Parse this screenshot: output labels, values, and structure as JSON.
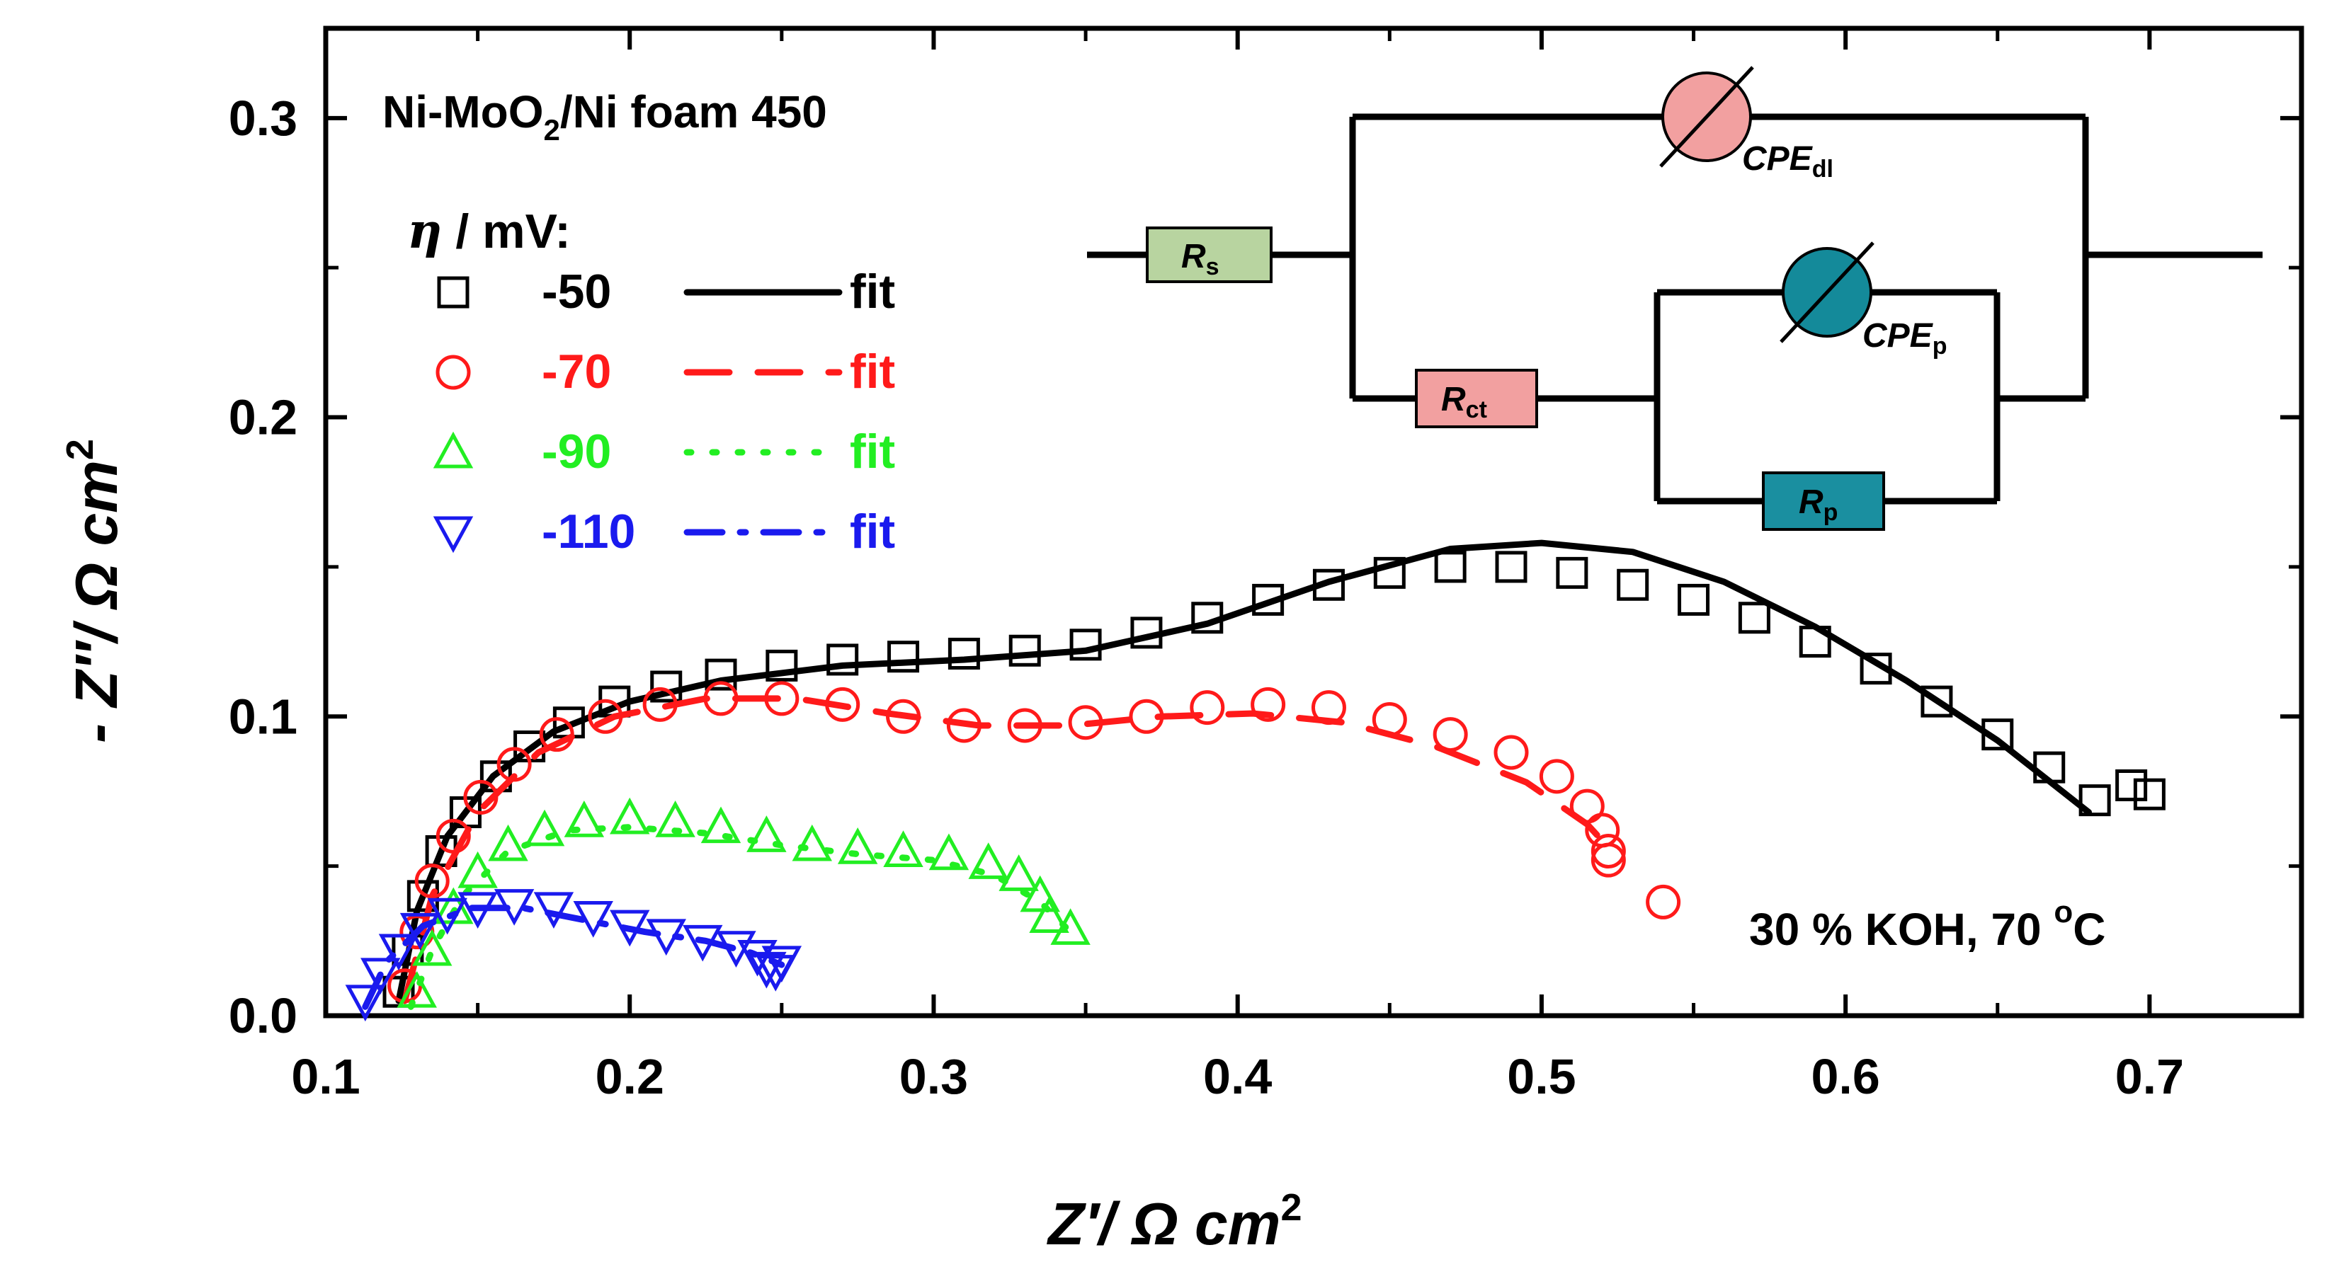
{
  "chart_data": {
    "type": "scatter",
    "title": "",
    "xlabel": "Z′/ Ω cm",
    "xlabel_sup": "2",
    "ylabel": "- Z″/ Ω cm",
    "ylabel_sup": "2",
    "xlim": [
      0.1,
      0.75
    ],
    "ylim": [
      0.0,
      0.33
    ],
    "xticks": [
      "0.1",
      "0.2",
      "0.3",
      "0.4",
      "0.5",
      "0.6",
      "0.7"
    ],
    "yticks": [
      "0.0",
      "0.1",
      "0.2",
      "0.3"
    ],
    "xtick_values": [
      0.1,
      0.2,
      0.3,
      0.4,
      0.5,
      0.6,
      0.7
    ],
    "ytick_values": [
      0.0,
      0.1,
      0.2,
      0.3
    ],
    "sample_label": "Ni-MoO",
    "sample_sub": "2",
    "sample_rest": "/Ni foam 450",
    "conditions_label": "30 % KOH, 70 ",
    "conditions_sup": "o",
    "conditions_unit": "C",
    "legend_title_symbol": "η",
    "legend_title_rest": " / mV:",
    "series": [
      {
        "name": "-50",
        "fit_label": "fit",
        "color": "#000000",
        "marker": "square",
        "fit_style": "solid",
        "points": [
          [
            0.124,
            0.008
          ],
          [
            0.127,
            0.022
          ],
          [
            0.132,
            0.04
          ],
          [
            0.138,
            0.055
          ],
          [
            0.146,
            0.068
          ],
          [
            0.156,
            0.08
          ],
          [
            0.167,
            0.09
          ],
          [
            0.18,
            0.098
          ],
          [
            0.195,
            0.105
          ],
          [
            0.212,
            0.11
          ],
          [
            0.23,
            0.114
          ],
          [
            0.25,
            0.117
          ],
          [
            0.27,
            0.119
          ],
          [
            0.29,
            0.12
          ],
          [
            0.31,
            0.121
          ],
          [
            0.33,
            0.122
          ],
          [
            0.35,
            0.124
          ],
          [
            0.37,
            0.128
          ],
          [
            0.39,
            0.133
          ],
          [
            0.41,
            0.139
          ],
          [
            0.43,
            0.144
          ],
          [
            0.45,
            0.148
          ],
          [
            0.47,
            0.15
          ],
          [
            0.49,
            0.15
          ],
          [
            0.51,
            0.148
          ],
          [
            0.53,
            0.144
          ],
          [
            0.55,
            0.139
          ],
          [
            0.57,
            0.133
          ],
          [
            0.59,
            0.125
          ],
          [
            0.61,
            0.116
          ],
          [
            0.63,
            0.105
          ],
          [
            0.65,
            0.094
          ],
          [
            0.667,
            0.083
          ],
          [
            0.682,
            0.072
          ],
          [
            0.694,
            0.077
          ],
          [
            0.7,
            0.074
          ]
        ],
        "fit": [
          [
            0.124,
            0.005
          ],
          [
            0.13,
            0.035
          ],
          [
            0.14,
            0.06
          ],
          [
            0.155,
            0.08
          ],
          [
            0.175,
            0.095
          ],
          [
            0.2,
            0.105
          ],
          [
            0.23,
            0.112
          ],
          [
            0.27,
            0.117
          ],
          [
            0.31,
            0.119
          ],
          [
            0.35,
            0.122
          ],
          [
            0.39,
            0.131
          ],
          [
            0.43,
            0.145
          ],
          [
            0.47,
            0.156
          ],
          [
            0.5,
            0.158
          ],
          [
            0.53,
            0.155
          ],
          [
            0.56,
            0.145
          ],
          [
            0.59,
            0.13
          ],
          [
            0.62,
            0.112
          ],
          [
            0.65,
            0.092
          ],
          [
            0.68,
            0.068
          ]
        ]
      },
      {
        "name": "-70",
        "fit_label": "fit",
        "color": "#ff1a1a",
        "marker": "circle",
        "fit_style": "dashed",
        "points": [
          [
            0.126,
            0.01
          ],
          [
            0.13,
            0.028
          ],
          [
            0.135,
            0.045
          ],
          [
            0.142,
            0.06
          ],
          [
            0.151,
            0.073
          ],
          [
            0.162,
            0.084
          ],
          [
            0.176,
            0.094
          ],
          [
            0.192,
            0.1
          ],
          [
            0.21,
            0.104
          ],
          [
            0.23,
            0.106
          ],
          [
            0.25,
            0.106
          ],
          [
            0.27,
            0.104
          ],
          [
            0.29,
            0.1
          ],
          [
            0.31,
            0.097
          ],
          [
            0.33,
            0.097
          ],
          [
            0.35,
            0.098
          ],
          [
            0.37,
            0.1
          ],
          [
            0.39,
            0.103
          ],
          [
            0.41,
            0.104
          ],
          [
            0.43,
            0.103
          ],
          [
            0.45,
            0.099
          ],
          [
            0.47,
            0.094
          ],
          [
            0.49,
            0.088
          ],
          [
            0.505,
            0.08
          ],
          [
            0.515,
            0.07
          ],
          [
            0.52,
            0.062
          ],
          [
            0.522,
            0.055
          ],
          [
            0.522,
            0.052
          ],
          [
            0.54,
            0.038
          ]
        ],
        "fit": [
          [
            0.126,
            0.005
          ],
          [
            0.135,
            0.04
          ],
          [
            0.15,
            0.068
          ],
          [
            0.17,
            0.088
          ],
          [
            0.195,
            0.1
          ],
          [
            0.225,
            0.106
          ],
          [
            0.255,
            0.106
          ],
          [
            0.285,
            0.101
          ],
          [
            0.315,
            0.097
          ],
          [
            0.345,
            0.097
          ],
          [
            0.375,
            0.1
          ],
          [
            0.405,
            0.101
          ],
          [
            0.435,
            0.098
          ],
          [
            0.465,
            0.09
          ],
          [
            0.495,
            0.078
          ],
          [
            0.515,
            0.064
          ],
          [
            0.524,
            0.054
          ]
        ]
      },
      {
        "name": "-90",
        "fit_label": "fit",
        "color": "#22ee22",
        "marker": "triangle-up",
        "fit_style": "dotted",
        "points": [
          [
            0.13,
            0.008
          ],
          [
            0.135,
            0.022
          ],
          [
            0.142,
            0.036
          ],
          [
            0.15,
            0.048
          ],
          [
            0.16,
            0.057
          ],
          [
            0.172,
            0.062
          ],
          [
            0.185,
            0.065
          ],
          [
            0.2,
            0.066
          ],
          [
            0.215,
            0.065
          ],
          [
            0.23,
            0.063
          ],
          [
            0.245,
            0.06
          ],
          [
            0.26,
            0.057
          ],
          [
            0.275,
            0.056
          ],
          [
            0.29,
            0.055
          ],
          [
            0.305,
            0.054
          ],
          [
            0.318,
            0.051
          ],
          [
            0.328,
            0.047
          ],
          [
            0.335,
            0.04
          ],
          [
            0.338,
            0.033
          ],
          [
            0.345,
            0.029
          ]
        ],
        "fit": [
          [
            0.128,
            0.003
          ],
          [
            0.135,
            0.022
          ],
          [
            0.145,
            0.04
          ],
          [
            0.16,
            0.055
          ],
          [
            0.18,
            0.062
          ],
          [
            0.2,
            0.063
          ],
          [
            0.225,
            0.061
          ],
          [
            0.25,
            0.057
          ],
          [
            0.275,
            0.054
          ],
          [
            0.3,
            0.052
          ],
          [
            0.32,
            0.047
          ],
          [
            0.335,
            0.038
          ],
          [
            0.345,
            0.028
          ]
        ]
      },
      {
        "name": "-110",
        "fit_label": "fit",
        "color": "#1a1aee",
        "marker": "triangle-down",
        "fit_style": "dashdot",
        "points": [
          [
            0.113,
            0.005
          ],
          [
            0.118,
            0.014
          ],
          [
            0.124,
            0.022
          ],
          [
            0.131,
            0.029
          ],
          [
            0.14,
            0.034
          ],
          [
            0.15,
            0.036
          ],
          [
            0.162,
            0.037
          ],
          [
            0.175,
            0.036
          ],
          [
            0.188,
            0.033
          ],
          [
            0.2,
            0.03
          ],
          [
            0.212,
            0.027
          ],
          [
            0.224,
            0.025
          ],
          [
            0.235,
            0.023
          ],
          [
            0.242,
            0.02
          ],
          [
            0.245,
            0.016
          ],
          [
            0.248,
            0.015
          ],
          [
            0.25,
            0.018
          ]
        ],
        "fit": [
          [
            0.113,
            0.003
          ],
          [
            0.12,
            0.018
          ],
          [
            0.132,
            0.03
          ],
          [
            0.148,
            0.036
          ],
          [
            0.165,
            0.036
          ],
          [
            0.185,
            0.032
          ],
          [
            0.205,
            0.028
          ],
          [
            0.225,
            0.025
          ],
          [
            0.24,
            0.021
          ],
          [
            0.25,
            0.017
          ]
        ]
      }
    ],
    "circuit": {
      "rs": "R",
      "rs_sub": "s",
      "rct": "R",
      "rct_sub": "ct",
      "rp": "R",
      "rp_sub": "p",
      "cpe_dl": "CPE",
      "cpe_dl_sub": "dl",
      "cpe_p": "CPE",
      "cpe_p_sub": "p",
      "rs_color": "#b8d4a0",
      "rct_color": "#f2a0a0",
      "rp_color": "#1a8fa0",
      "cpe_dl_color": "#f2a0a0",
      "cpe_p_color": "#148a9a"
    }
  }
}
